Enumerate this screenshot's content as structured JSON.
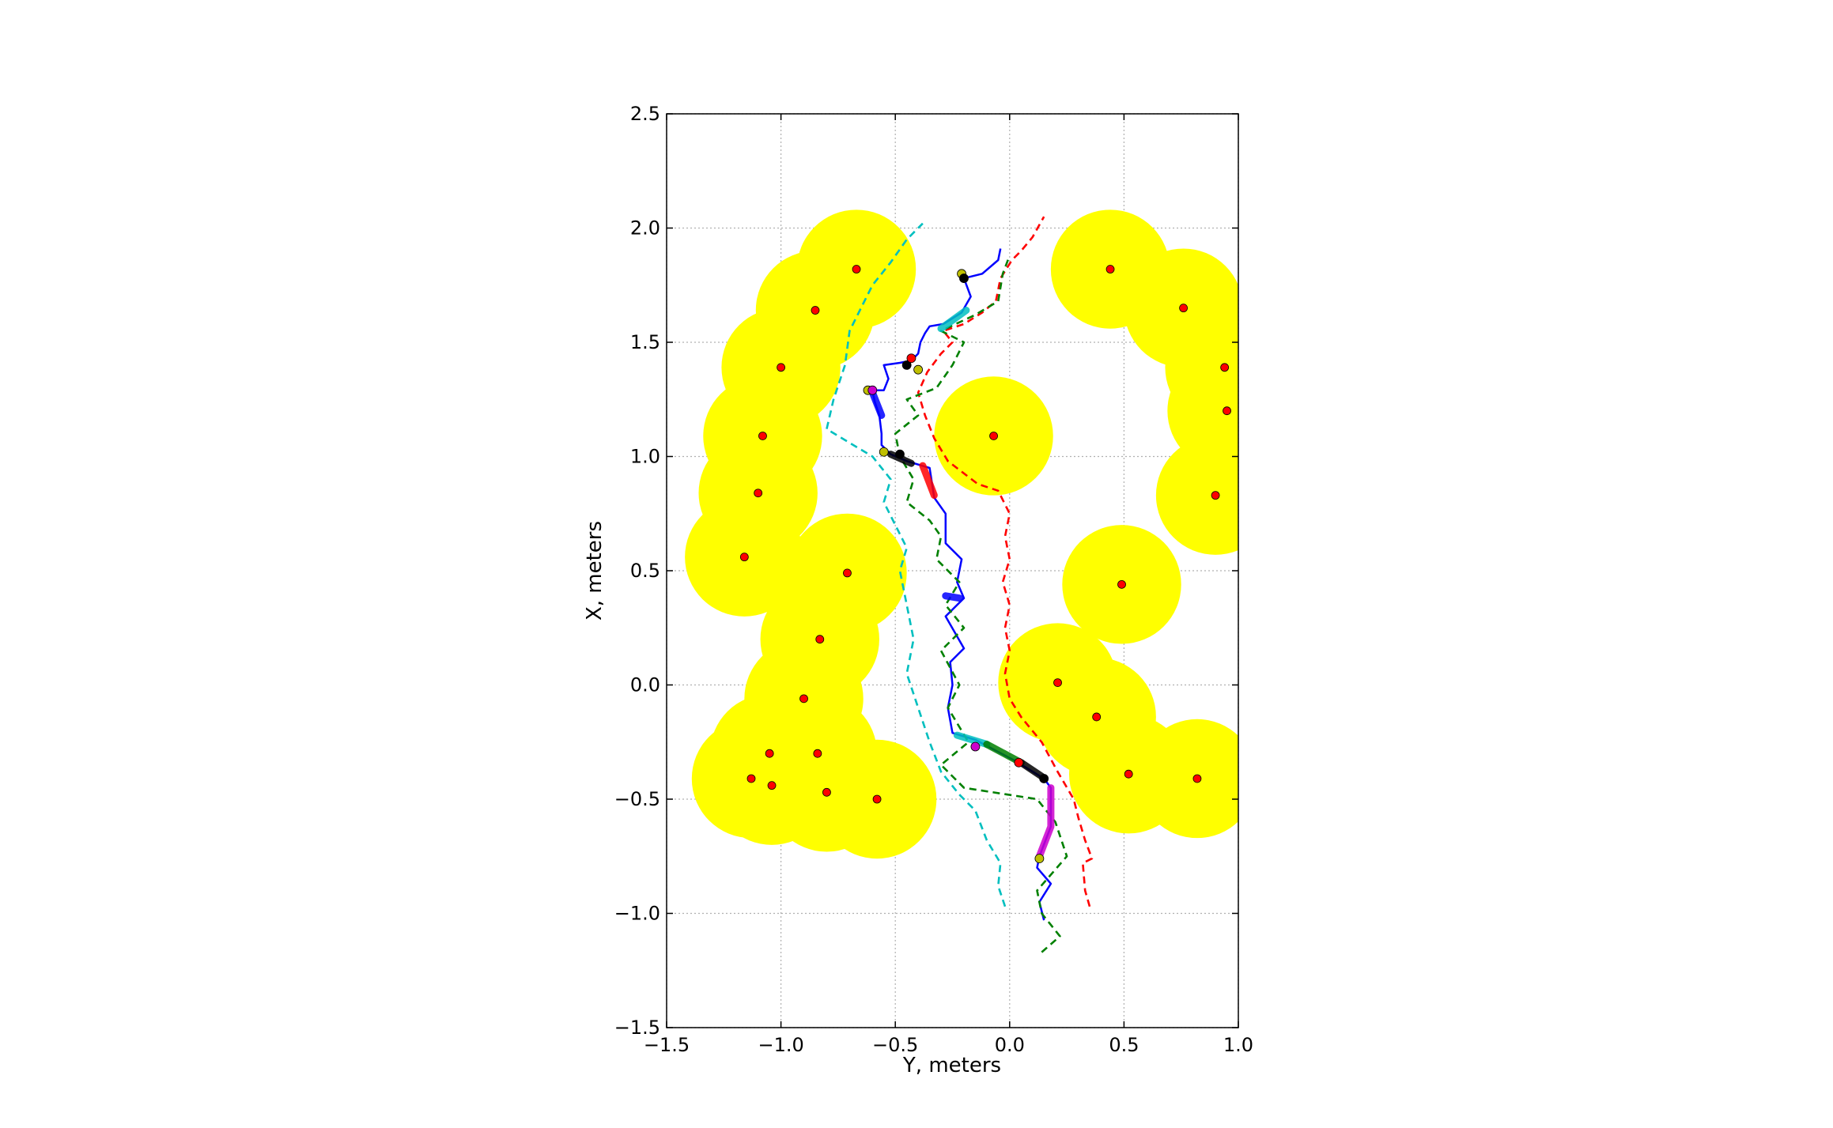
{
  "chart_data": {
    "type": "scatter",
    "title": "",
    "xlabel": "Y, meters",
    "ylabel": "X, meters",
    "xlim": [
      -1.5,
      1.0
    ],
    "ylim": [
      -1.5,
      2.5
    ],
    "xticks": [
      -1.5,
      -1.0,
      -0.5,
      0.0,
      0.5,
      1.0
    ],
    "yticks": [
      -1.5,
      -1.0,
      -0.5,
      0.0,
      0.5,
      1.0,
      1.5,
      2.0,
      2.5
    ],
    "xtick_labels": [
      "−1.5",
      "−1.0",
      "−0.5",
      "0.0",
      "0.5",
      "1.0"
    ],
    "ytick_labels": [
      "−1.5",
      "−1.0",
      "−0.5",
      "0.0",
      "0.5",
      "1.0",
      "1.5",
      "2.0",
      "2.5"
    ],
    "grid": true,
    "legend": "none",
    "colors": {
      "obstacle_fill": "#ffff00",
      "obstacle_center": "#ff0000",
      "robot_path": "#0000ff",
      "red_dashed": "#ff0000",
      "green_dashed": "#008000",
      "cyan_dashed": "#00bfbf"
    },
    "obstacle_radius": 0.26,
    "obstacles": [
      {
        "x": -0.67,
        "y": 1.82
      },
      {
        "x": -0.85,
        "y": 1.64
      },
      {
        "x": -1.0,
        "y": 1.39
      },
      {
        "x": -1.08,
        "y": 1.09
      },
      {
        "x": -1.1,
        "y": 0.84
      },
      {
        "x": -1.16,
        "y": 0.56
      },
      {
        "x": -0.71,
        "y": 0.49
      },
      {
        "x": -0.83,
        "y": 0.2
      },
      {
        "x": -0.9,
        "y": -0.06
      },
      {
        "x": -0.84,
        "y": -0.3
      },
      {
        "x": -1.05,
        "y": -0.3
      },
      {
        "x": -1.13,
        "y": -0.41
      },
      {
        "x": -1.04,
        "y": -0.44
      },
      {
        "x": -0.8,
        "y": -0.47
      },
      {
        "x": -0.58,
        "y": -0.5
      },
      {
        "x": -0.07,
        "y": 1.09
      },
      {
        "x": 0.44,
        "y": 1.82
      },
      {
        "x": 0.76,
        "y": 1.65
      },
      {
        "x": 0.94,
        "y": 1.39
      },
      {
        "x": 0.95,
        "y": 1.2
      },
      {
        "x": 0.9,
        "y": 0.83
      },
      {
        "x": 0.49,
        "y": 0.44
      },
      {
        "x": 0.21,
        "y": 0.01
      },
      {
        "x": 0.38,
        "y": -0.14
      },
      {
        "x": 0.52,
        "y": -0.39
      },
      {
        "x": 0.82,
        "y": -0.41
      }
    ],
    "series": [
      {
        "style": "solid",
        "color": "#0000ff",
        "points": [
          [
            0.15,
            -1.03
          ],
          [
            0.13,
            -0.95
          ],
          [
            0.18,
            -0.87
          ],
          [
            0.12,
            -0.8
          ],
          [
            0.13,
            -0.75
          ],
          [
            0.18,
            -0.62
          ],
          [
            0.18,
            -0.45
          ],
          [
            0.15,
            -0.41
          ],
          [
            0.02,
            -0.33
          ],
          [
            -0.15,
            -0.24
          ],
          [
            -0.25,
            -0.21
          ],
          [
            -0.27,
            -0.1
          ],
          [
            -0.25,
            0.0
          ],
          [
            -0.26,
            0.1
          ],
          [
            -0.2,
            0.16
          ],
          [
            -0.28,
            0.3
          ],
          [
            -0.2,
            0.38
          ],
          [
            -0.23,
            0.45
          ],
          [
            -0.21,
            0.55
          ],
          [
            -0.28,
            0.62
          ],
          [
            -0.28,
            0.75
          ],
          [
            -0.33,
            0.82
          ],
          [
            -0.35,
            0.95
          ],
          [
            -0.45,
            0.98
          ],
          [
            -0.52,
            1.01
          ],
          [
            -0.56,
            1.05
          ],
          [
            -0.56,
            1.1
          ],
          [
            -0.57,
            1.18
          ],
          [
            -0.59,
            1.24
          ],
          [
            -0.6,
            1.29
          ],
          [
            -0.55,
            1.29
          ],
          [
            -0.53,
            1.34
          ],
          [
            -0.55,
            1.4
          ],
          [
            -0.48,
            1.41
          ],
          [
            -0.43,
            1.42
          ],
          [
            -0.4,
            1.45
          ],
          [
            -0.39,
            1.5
          ],
          [
            -0.37,
            1.54
          ],
          [
            -0.35,
            1.57
          ],
          [
            -0.29,
            1.58
          ],
          [
            -0.21,
            1.63
          ],
          [
            -0.17,
            1.7
          ],
          [
            -0.2,
            1.78
          ],
          [
            -0.12,
            1.8
          ],
          [
            -0.05,
            1.86
          ],
          [
            -0.04,
            1.91
          ]
        ]
      },
      {
        "style": "dashed",
        "color": "#ff0000",
        "points": [
          [
            0.35,
            -0.97
          ],
          [
            0.33,
            -0.9
          ],
          [
            0.32,
            -0.78
          ],
          [
            0.36,
            -0.76
          ],
          [
            0.33,
            -0.68
          ],
          [
            0.3,
            -0.58
          ],
          [
            0.28,
            -0.5
          ],
          [
            0.21,
            -0.38
          ],
          [
            0.14,
            -0.25
          ],
          [
            0.05,
            -0.14
          ],
          [
            0.0,
            -0.06
          ],
          [
            -0.02,
            0.05
          ],
          [
            0.0,
            0.15
          ],
          [
            -0.02,
            0.25
          ],
          [
            0.0,
            0.35
          ],
          [
            -0.03,
            0.45
          ],
          [
            0.0,
            0.55
          ],
          [
            -0.02,
            0.65
          ],
          [
            0.0,
            0.75
          ],
          [
            -0.05,
            0.85
          ],
          [
            -0.14,
            0.88
          ],
          [
            -0.27,
            0.98
          ],
          [
            -0.33,
            1.08
          ],
          [
            -0.37,
            1.18
          ],
          [
            -0.4,
            1.28
          ],
          [
            -0.36,
            1.37
          ],
          [
            -0.3,
            1.45
          ],
          [
            -0.25,
            1.5
          ],
          [
            -0.29,
            1.55
          ],
          [
            -0.2,
            1.58
          ],
          [
            -0.12,
            1.63
          ],
          [
            -0.06,
            1.68
          ],
          [
            -0.04,
            1.78
          ],
          [
            0.01,
            1.86
          ],
          [
            0.05,
            1.9
          ],
          [
            0.1,
            1.96
          ],
          [
            0.15,
            2.05
          ]
        ]
      },
      {
        "style": "dashed",
        "color": "#008000",
        "points": [
          [
            0.14,
            -1.17
          ],
          [
            0.22,
            -1.1
          ],
          [
            0.14,
            -1.0
          ],
          [
            0.12,
            -0.9
          ],
          [
            0.25,
            -0.75
          ],
          [
            0.2,
            -0.6
          ],
          [
            0.12,
            -0.5
          ],
          [
            -0.2,
            -0.45
          ],
          [
            -0.3,
            -0.35
          ],
          [
            -0.18,
            -0.25
          ],
          [
            -0.27,
            -0.1
          ],
          [
            -0.22,
            0.0
          ],
          [
            -0.3,
            0.15
          ],
          [
            -0.2,
            0.25
          ],
          [
            -0.28,
            0.35
          ],
          [
            -0.22,
            0.45
          ],
          [
            -0.32,
            0.55
          ],
          [
            -0.3,
            0.65
          ],
          [
            -0.35,
            0.72
          ],
          [
            -0.45,
            0.8
          ],
          [
            -0.42,
            0.9
          ],
          [
            -0.48,
            1.0
          ],
          [
            -0.5,
            1.1
          ],
          [
            -0.4,
            1.18
          ],
          [
            -0.45,
            1.25
          ],
          [
            -0.32,
            1.3
          ],
          [
            -0.25,
            1.4
          ],
          [
            -0.2,
            1.5
          ],
          [
            -0.3,
            1.55
          ],
          [
            -0.15,
            1.62
          ],
          [
            -0.05,
            1.68
          ],
          [
            -0.03,
            1.8
          ],
          [
            0.0,
            1.88
          ]
        ]
      },
      {
        "style": "dashed",
        "color": "#00bfbf",
        "points": [
          [
            -0.02,
            -0.97
          ],
          [
            -0.05,
            -0.88
          ],
          [
            -0.04,
            -0.78
          ],
          [
            -0.1,
            -0.68
          ],
          [
            -0.15,
            -0.55
          ],
          [
            -0.22,
            -0.48
          ],
          [
            -0.3,
            -0.38
          ],
          [
            -0.35,
            -0.25
          ],
          [
            -0.4,
            -0.1
          ],
          [
            -0.45,
            0.05
          ],
          [
            -0.42,
            0.2
          ],
          [
            -0.45,
            0.35
          ],
          [
            -0.48,
            0.5
          ],
          [
            -0.45,
            0.6
          ],
          [
            -0.5,
            0.7
          ],
          [
            -0.55,
            0.8
          ],
          [
            -0.52,
            0.9
          ],
          [
            -0.6,
            1.0
          ],
          [
            -0.7,
            1.06
          ],
          [
            -0.8,
            1.12
          ],
          [
            -0.77,
            1.25
          ],
          [
            -0.72,
            1.4
          ],
          [
            -0.7,
            1.55
          ],
          [
            -0.65,
            1.65
          ],
          [
            -0.6,
            1.75
          ],
          [
            -0.52,
            1.85
          ],
          [
            -0.45,
            1.95
          ],
          [
            -0.38,
            2.02
          ]
        ]
      }
    ],
    "highlight_segments": [
      {
        "color": "#00bfbf",
        "points": [
          [
            -0.23,
            -0.22
          ],
          [
            -0.1,
            -0.26
          ]
        ]
      },
      {
        "color": "#008000",
        "points": [
          [
            -0.1,
            -0.26
          ],
          [
            0.05,
            -0.34
          ]
        ]
      },
      {
        "color": "#000000",
        "points": [
          [
            0.05,
            -0.34
          ],
          [
            0.14,
            -0.4
          ]
        ]
      },
      {
        "color": "#cc00cc",
        "points": [
          [
            0.18,
            -0.45
          ],
          [
            0.18,
            -0.62
          ],
          [
            0.13,
            -0.75
          ]
        ]
      },
      {
        "color": "#ff0000",
        "points": [
          [
            -0.38,
            0.96
          ],
          [
            -0.33,
            0.83
          ]
        ]
      },
      {
        "color": "#000000",
        "points": [
          [
            -0.52,
            1.01
          ],
          [
            -0.43,
            0.97
          ]
        ]
      },
      {
        "color": "#0000ff",
        "points": [
          [
            -0.6,
            1.28
          ],
          [
            -0.56,
            1.18
          ]
        ]
      },
      {
        "color": "#00bfbf",
        "points": [
          [
            -0.3,
            1.56
          ],
          [
            -0.19,
            1.64
          ]
        ]
      },
      {
        "color": "#0000ff",
        "points": [
          [
            -0.28,
            0.39
          ],
          [
            -0.22,
            0.38
          ]
        ]
      }
    ],
    "markers": [
      {
        "color": "#bfbf00",
        "points": [
          [
            -0.21,
            1.8
          ],
          [
            -0.55,
            1.02
          ],
          [
            -0.4,
            1.38
          ],
          [
            0.13,
            -0.76
          ],
          [
            -0.62,
            1.29
          ]
        ]
      },
      {
        "color": "#cc00cc",
        "points": [
          [
            -0.6,
            1.29
          ],
          [
            -0.15,
            -0.27
          ]
        ]
      },
      {
        "color": "#000000",
        "points": [
          [
            -0.2,
            1.78
          ],
          [
            -0.48,
            1.01
          ],
          [
            -0.45,
            1.4
          ],
          [
            0.15,
            -0.41
          ]
        ]
      },
      {
        "color": "#ff0000",
        "points": [
          [
            -0.43,
            1.43
          ],
          [
            0.04,
            -0.34
          ]
        ]
      }
    ]
  }
}
